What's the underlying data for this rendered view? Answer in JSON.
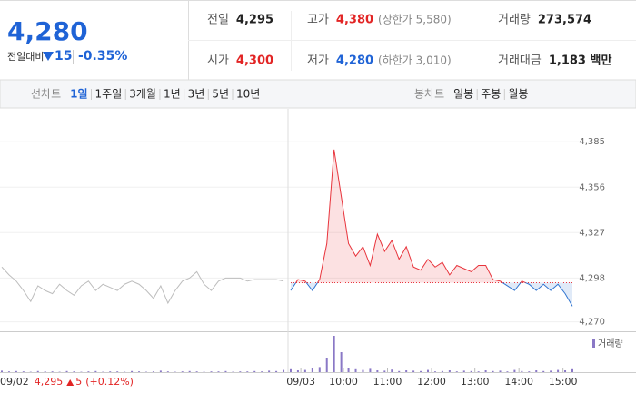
{
  "price_info": {
    "price": "4,280",
    "change_label": "전일대비",
    "change": "15",
    "change_rate": "-0.35%"
  },
  "stats": [
    {
      "label": "전일",
      "value": "4,295",
      "color": "#222222"
    },
    {
      "label": "고가",
      "value": "4,380",
      "note": "(상한가 5,580)",
      "color": "#e22424"
    },
    {
      "label": "거래량",
      "value": "273,574",
      "color": "#222222"
    },
    {
      "label": "시가",
      "value": "4,300",
      "color": "#e22424"
    },
    {
      "label": "저가",
      "value": "4,280",
      "note": "(하한가 3,010)",
      "color": "#1f63d6"
    },
    {
      "label": "거래대금",
      "value": "1,183 백만",
      "color": "#222222"
    }
  ],
  "line_tabs": {
    "label": "선차트",
    "items": [
      "1일",
      "1주일",
      "3개월",
      "1년",
      "3년",
      "5년",
      "10년"
    ]
  },
  "candle_tabs": {
    "label": "봉차트",
    "items": [
      "일봉",
      "주봉",
      "월봉"
    ]
  },
  "chart_data": {
    "type": "line",
    "x": [
      0,
      1,
      2,
      3,
      4,
      5,
      6,
      7,
      8,
      9,
      10,
      11,
      12,
      13,
      14,
      15,
      16,
      17,
      18,
      19,
      20,
      21,
      22,
      23,
      24,
      25,
      26,
      27,
      28,
      29,
      30,
      31,
      32,
      33,
      34,
      35,
      36,
      37,
      38,
      39,
      40,
      41,
      42,
      43,
      44,
      45,
      46,
      47,
      48,
      49,
      50,
      51,
      52,
      53,
      54,
      55,
      56,
      57,
      58,
      59,
      60,
      61,
      62,
      63,
      64,
      65,
      66,
      67,
      68,
      69,
      70,
      71,
      72,
      73,
      74,
      75,
      76,
      77,
      78,
      79
    ],
    "xlim": [
      0,
      79
    ],
    "xticks": [
      {
        "value": 41.4,
        "label": "09/03"
      },
      {
        "value": 47.3,
        "label": "10:00"
      },
      {
        "value": 53.4,
        "label": "11:00"
      },
      {
        "value": 59.5,
        "label": "12:00"
      },
      {
        "value": 65.5,
        "label": "13:00"
      },
      {
        "value": 71.6,
        "label": "14:00"
      },
      {
        "value": 77.7,
        "label": "15:00"
      }
    ],
    "ylim": [
      4264,
      4406
    ],
    "yticks": [
      {
        "value": 4270,
        "label": "4,270"
      },
      {
        "value": 4298,
        "label": "4,298"
      },
      {
        "value": 4327,
        "label": "4,327"
      },
      {
        "value": 4356,
        "label": "4,356"
      },
      {
        "value": 4385,
        "label": "4,385"
      }
    ],
    "grid": true,
    "baseline": 4295,
    "series": [
      {
        "color": "#bdbdbd",
        "values": [
          4305,
          4300,
          4296,
          4290,
          4283,
          4293,
          4290,
          4288,
          4294,
          4290,
          4287,
          4293,
          4296,
          4290,
          4294,
          4292,
          4290,
          4294,
          4296,
          4294,
          4290,
          4285,
          4293,
          4282,
          4290,
          4296,
          4298,
          4302,
          4294,
          4290,
          4296,
          4298,
          4298,
          4298,
          4296,
          4297,
          4297,
          4297,
          4297,
          4296,
          null,
          null,
          null,
          null,
          null,
          null,
          null,
          null,
          null,
          null,
          null,
          null,
          null,
          null,
          null,
          null,
          null,
          null,
          null,
          null,
          null,
          null,
          null,
          null,
          null,
          null,
          null,
          null,
          null,
          null,
          null,
          null,
          null,
          null,
          null,
          null,
          null,
          null,
          null,
          null
        ]
      },
      {
        "color": "#e8343c",
        "down_color": "#2f74d0",
        "values": [
          null,
          null,
          null,
          null,
          null,
          null,
          null,
          null,
          null,
          null,
          null,
          null,
          null,
          null,
          null,
          null,
          null,
          null,
          null,
          null,
          null,
          null,
          null,
          null,
          null,
          null,
          null,
          null,
          null,
          null,
          null,
          null,
          null,
          null,
          null,
          null,
          null,
          null,
          null,
          null,
          4290,
          4297,
          4296,
          4290,
          4297,
          4320,
          4380,
          4350,
          4320,
          4312,
          4318,
          4306,
          4326,
          4315,
          4322,
          4310,
          4318,
          4305,
          4303,
          4310,
          4305,
          4308,
          4300,
          4306,
          4304,
          4302,
          4306,
          4306,
          4297,
          4296,
          4293,
          4290,
          4296,
          4294,
          4290,
          4294,
          4290,
          4294,
          4288,
          4280
        ]
      }
    ],
    "volume": {
      "name": "거래량",
      "color": "#8a78c6",
      "ylim": [
        0,
        100
      ],
      "values": [
        4,
        2,
        3,
        2,
        1,
        3,
        2,
        2,
        1,
        3,
        2,
        1,
        2,
        3,
        1,
        2,
        2,
        1,
        3,
        2,
        1,
        2,
        4,
        2,
        1,
        2,
        3,
        2,
        1,
        2,
        2,
        3,
        1,
        2,
        2,
        3,
        2,
        4,
        3,
        6,
        8,
        5,
        6,
        10,
        14,
        40,
        100,
        55,
        12,
        8,
        6,
        9,
        5,
        4,
        7,
        3,
        5,
        4,
        3,
        6,
        2,
        3,
        5,
        2,
        4,
        3,
        2,
        5,
        3,
        4,
        2,
        6,
        3,
        2,
        5,
        3,
        4,
        6,
        5,
        8
      ]
    },
    "footer": {
      "date": "09/02",
      "price": "4,295",
      "change": "5",
      "change_rate": "(+0.12%)"
    }
  }
}
